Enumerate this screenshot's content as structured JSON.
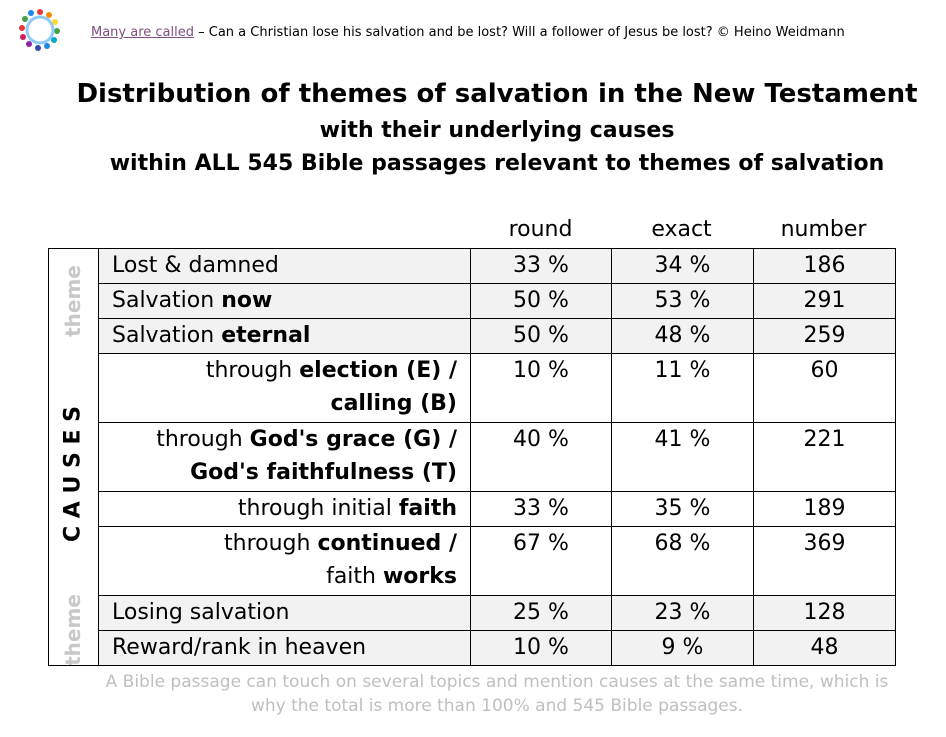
{
  "header": {
    "link": "Many are called",
    "text": " – Can a Christian lose his salvation and be lost? Will a follower of Jesus be lost? © Heino Weidmann"
  },
  "title": [
    "Distribution of themes of salvation in the New Testament",
    "with their underlying causes",
    "within ALL 545 Bible passages relevant to themes of salvation"
  ],
  "table": {
    "columns": [
      "round",
      "exact",
      "number"
    ],
    "sections": [
      {
        "label": "theme",
        "rows": [
          {
            "label": [
              [
                {
                  "text": "Lost & damned"
                }
              ]
            ],
            "round": "33 %",
            "exact": "34 %",
            "number": 186
          },
          {
            "label": [
              [
                {
                  "text": "Salvation "
                },
                {
                  "text": "now",
                  "bold": true
                }
              ]
            ],
            "round": "50 %",
            "exact": "53 %",
            "number": 291
          },
          {
            "label": [
              [
                {
                  "text": "Salvation "
                },
                {
                  "text": "eternal",
                  "bold": true
                }
              ]
            ],
            "round": "50 %",
            "exact": "48 %",
            "number": 259
          }
        ]
      },
      {
        "label": "C A U S E S",
        "rows": [
          {
            "label": [
              [
                {
                  "text": "through "
                },
                {
                  "text": "election (E) /",
                  "bold": true
                }
              ],
              [
                {
                  "text": "calling (B)",
                  "bold": true
                }
              ]
            ],
            "round": "10 %",
            "exact": "11 %",
            "number": 60
          },
          {
            "label": [
              [
                {
                  "text": "through "
                },
                {
                  "text": "God's grace (G) /",
                  "bold": true
                }
              ],
              [
                {
                  "text": "God's faithfulness (T)",
                  "bold": true
                }
              ]
            ],
            "round": "40 %",
            "exact": "41 %",
            "number": 221
          },
          {
            "label": [
              [
                {
                  "text": "through initial "
                },
                {
                  "text": "faith",
                  "bold": true
                }
              ]
            ],
            "round": "33 %",
            "exact": "35 %",
            "number": 189
          },
          {
            "label": [
              [
                {
                  "text": "through "
                },
                {
                  "text": "continued /",
                  "bold": true
                }
              ],
              [
                {
                  "text": "faith "
                },
                {
                  "text": "works",
                  "bold": true
                }
              ]
            ],
            "round": "67 %",
            "exact": "68 %",
            "number": 369
          }
        ]
      },
      {
        "label": "theme",
        "rows": [
          {
            "label": [
              [
                {
                  "text": "Losing salvation"
                }
              ]
            ],
            "round": "25 %",
            "exact": "23 %",
            "number": 128
          },
          {
            "label": [
              [
                {
                  "text": "Reward/rank in heaven"
                }
              ]
            ],
            "round": "10 %",
            "exact": "9 %",
            "number": 48
          }
        ]
      }
    ]
  },
  "footer": [
    "A Bible passage can touch on several topics and mention causes at the same time, which is",
    "why the total is more than 100% and 545 Bible passages."
  ]
}
